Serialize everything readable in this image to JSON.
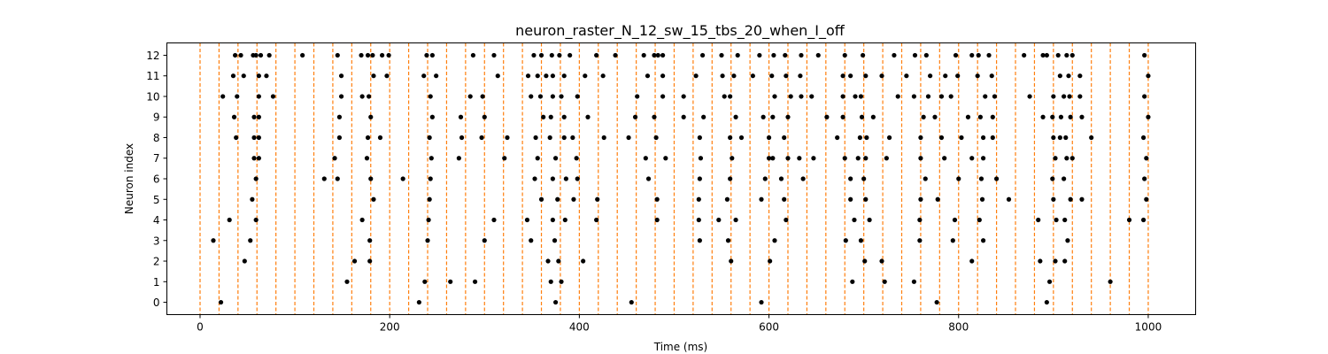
{
  "chart_data": {
    "type": "scatter",
    "title": "neuron_raster_N_12_sw_15_tbs_20_when_I_off",
    "xlabel": "Time (ms)",
    "ylabel": "Neuron index",
    "xlim": [
      -35,
      1050
    ],
    "ylim": [
      -0.6,
      12.6
    ],
    "xticks": [
      0,
      200,
      400,
      600,
      800,
      1000
    ],
    "yticks": [
      0,
      1,
      2,
      3,
      4,
      5,
      6,
      7,
      8,
      9,
      10,
      11,
      12
    ],
    "grid": false,
    "legend": "none",
    "marker_color": "#000000",
    "vline_color": "#ff7f0e",
    "vlines_x": [
      0,
      20,
      40,
      60,
      80,
      100,
      120,
      140,
      160,
      180,
      200,
      220,
      240,
      260,
      280,
      300,
      320,
      340,
      360,
      380,
      400,
      420,
      440,
      460,
      480,
      500,
      520,
      540,
      560,
      580,
      600,
      620,
      640,
      660,
      680,
      700,
      720,
      740,
      760,
      780,
      800,
      820,
      840,
      860,
      880,
      900,
      920,
      940,
      960,
      980,
      1000
    ],
    "spikes": [
      [
        22,
        0
      ],
      [
        231,
        0
      ],
      [
        375,
        0
      ],
      [
        455,
        0
      ],
      [
        592,
        0
      ],
      [
        777,
        0
      ],
      [
        893,
        0
      ],
      [
        155,
        1
      ],
      [
        237,
        1
      ],
      [
        264,
        1
      ],
      [
        290,
        1
      ],
      [
        370,
        1
      ],
      [
        381,
        1
      ],
      [
        688,
        1
      ],
      [
        722,
        1
      ],
      [
        753,
        1
      ],
      [
        896,
        1
      ],
      [
        960,
        1
      ],
      [
        47,
        2
      ],
      [
        163,
        2
      ],
      [
        179,
        2
      ],
      [
        367,
        2
      ],
      [
        378,
        2
      ],
      [
        404,
        2
      ],
      [
        560,
        2
      ],
      [
        601,
        2
      ],
      [
        701,
        2
      ],
      [
        719,
        2
      ],
      [
        814,
        2
      ],
      [
        886,
        2
      ],
      [
        902,
        2
      ],
      [
        912,
        2
      ],
      [
        14,
        3
      ],
      [
        53,
        3
      ],
      [
        179,
        3
      ],
      [
        240,
        3
      ],
      [
        300,
        3
      ],
      [
        349,
        3
      ],
      [
        374,
        3
      ],
      [
        527,
        3
      ],
      [
        557,
        3
      ],
      [
        606,
        3
      ],
      [
        681,
        3
      ],
      [
        697,
        3
      ],
      [
        759,
        3
      ],
      [
        794,
        3
      ],
      [
        826,
        3
      ],
      [
        915,
        3
      ],
      [
        31,
        4
      ],
      [
        59,
        4
      ],
      [
        171,
        4
      ],
      [
        241,
        4
      ],
      [
        310,
        4
      ],
      [
        345,
        4
      ],
      [
        372,
        4
      ],
      [
        385,
        4
      ],
      [
        418,
        4
      ],
      [
        482,
        4
      ],
      [
        526,
        4
      ],
      [
        547,
        4
      ],
      [
        565,
        4
      ],
      [
        618,
        4
      ],
      [
        690,
        4
      ],
      [
        706,
        4
      ],
      [
        759,
        4
      ],
      [
        796,
        4
      ],
      [
        822,
        4
      ],
      [
        884,
        4
      ],
      [
        903,
        4
      ],
      [
        912,
        4
      ],
      [
        980,
        4
      ],
      [
        995,
        4
      ],
      [
        55,
        5
      ],
      [
        183,
        5
      ],
      [
        242,
        5
      ],
      [
        360,
        5
      ],
      [
        377,
        5
      ],
      [
        394,
        5
      ],
      [
        419,
        5
      ],
      [
        482,
        5
      ],
      [
        526,
        5
      ],
      [
        556,
        5
      ],
      [
        592,
        5
      ],
      [
        616,
        5
      ],
      [
        686,
        5
      ],
      [
        702,
        5
      ],
      [
        760,
        5
      ],
      [
        778,
        5
      ],
      [
        825,
        5
      ],
      [
        853,
        5
      ],
      [
        900,
        5
      ],
      [
        918,
        5
      ],
      [
        930,
        5
      ],
      [
        998,
        5
      ],
      [
        59,
        6
      ],
      [
        131,
        6
      ],
      [
        145,
        6
      ],
      [
        180,
        6
      ],
      [
        214,
        6
      ],
      [
        243,
        6
      ],
      [
        353,
        6
      ],
      [
        372,
        6
      ],
      [
        386,
        6
      ],
      [
        398,
        6
      ],
      [
        473,
        6
      ],
      [
        527,
        6
      ],
      [
        559,
        6
      ],
      [
        596,
        6
      ],
      [
        613,
        6
      ],
      [
        636,
        6
      ],
      [
        686,
        6
      ],
      [
        700,
        6
      ],
      [
        765,
        6
      ],
      [
        800,
        6
      ],
      [
        824,
        6
      ],
      [
        840,
        6
      ],
      [
        899,
        6
      ],
      [
        911,
        6
      ],
      [
        996,
        6
      ],
      [
        57,
        7
      ],
      [
        62,
        7
      ],
      [
        142,
        7
      ],
      [
        176,
        7
      ],
      [
        244,
        7
      ],
      [
        273,
        7
      ],
      [
        321,
        7
      ],
      [
        356,
        7
      ],
      [
        375,
        7
      ],
      [
        397,
        7
      ],
      [
        470,
        7
      ],
      [
        491,
        7
      ],
      [
        528,
        7
      ],
      [
        561,
        7
      ],
      [
        600,
        7
      ],
      [
        604,
        7
      ],
      [
        620,
        7
      ],
      [
        632,
        7
      ],
      [
        647,
        7
      ],
      [
        680,
        7
      ],
      [
        694,
        7
      ],
      [
        702,
        7
      ],
      [
        724,
        7
      ],
      [
        760,
        7
      ],
      [
        785,
        7
      ],
      [
        814,
        7
      ],
      [
        826,
        7
      ],
      [
        902,
        7
      ],
      [
        914,
        7
      ],
      [
        920,
        7
      ],
      [
        998,
        7
      ],
      [
        38,
        8
      ],
      [
        57,
        8
      ],
      [
        62,
        8
      ],
      [
        147,
        8
      ],
      [
        177,
        8
      ],
      [
        190,
        8
      ],
      [
        242,
        8
      ],
      [
        276,
        8
      ],
      [
        297,
        8
      ],
      [
        324,
        8
      ],
      [
        354,
        8
      ],
      [
        369,
        8
      ],
      [
        384,
        8
      ],
      [
        393,
        8
      ],
      [
        426,
        8
      ],
      [
        452,
        8
      ],
      [
        481,
        8
      ],
      [
        527,
        8
      ],
      [
        559,
        8
      ],
      [
        571,
        8
      ],
      [
        600,
        8
      ],
      [
        616,
        8
      ],
      [
        672,
        8
      ],
      [
        696,
        8
      ],
      [
        703,
        8
      ],
      [
        727,
        8
      ],
      [
        760,
        8
      ],
      [
        782,
        8
      ],
      [
        803,
        8
      ],
      [
        826,
        8
      ],
      [
        836,
        8
      ],
      [
        900,
        8
      ],
      [
        907,
        8
      ],
      [
        913,
        8
      ],
      [
        940,
        8
      ],
      [
        995,
        8
      ],
      [
        36,
        9
      ],
      [
        57,
        9
      ],
      [
        62,
        9
      ],
      [
        147,
        9
      ],
      [
        180,
        9
      ],
      [
        245,
        9
      ],
      [
        275,
        9
      ],
      [
        300,
        9
      ],
      [
        362,
        9
      ],
      [
        370,
        9
      ],
      [
        384,
        9
      ],
      [
        409,
        9
      ],
      [
        459,
        9
      ],
      [
        479,
        9
      ],
      [
        510,
        9
      ],
      [
        531,
        9
      ],
      [
        565,
        9
      ],
      [
        594,
        9
      ],
      [
        604,
        9
      ],
      [
        620,
        9
      ],
      [
        661,
        9
      ],
      [
        678,
        9
      ],
      [
        698,
        9
      ],
      [
        710,
        9
      ],
      [
        763,
        9
      ],
      [
        775,
        9
      ],
      [
        810,
        9
      ],
      [
        823,
        9
      ],
      [
        836,
        9
      ],
      [
        889,
        9
      ],
      [
        899,
        9
      ],
      [
        908,
        9
      ],
      [
        918,
        9
      ],
      [
        930,
        9
      ],
      [
        1000,
        9
      ],
      [
        24,
        10
      ],
      [
        39,
        10
      ],
      [
        62,
        10
      ],
      [
        77,
        10
      ],
      [
        149,
        10
      ],
      [
        171,
        10
      ],
      [
        178,
        10
      ],
      [
        243,
        10
      ],
      [
        285,
        10
      ],
      [
        298,
        10
      ],
      [
        349,
        10
      ],
      [
        359,
        10
      ],
      [
        372,
        10
      ],
      [
        381,
        10
      ],
      [
        398,
        10
      ],
      [
        461,
        10
      ],
      [
        488,
        10
      ],
      [
        510,
        10
      ],
      [
        553,
        10
      ],
      [
        559,
        10
      ],
      [
        606,
        10
      ],
      [
        623,
        10
      ],
      [
        634,
        10
      ],
      [
        645,
        10
      ],
      [
        678,
        10
      ],
      [
        691,
        10
      ],
      [
        697,
        10
      ],
      [
        736,
        10
      ],
      [
        753,
        10
      ],
      [
        768,
        10
      ],
      [
        782,
        10
      ],
      [
        792,
        10
      ],
      [
        828,
        10
      ],
      [
        838,
        10
      ],
      [
        875,
        10
      ],
      [
        900,
        10
      ],
      [
        911,
        10
      ],
      [
        917,
        10
      ],
      [
        928,
        10
      ],
      [
        996,
        10
      ],
      [
        35,
        11
      ],
      [
        46,
        11
      ],
      [
        62,
        11
      ],
      [
        70,
        11
      ],
      [
        149,
        11
      ],
      [
        183,
        11
      ],
      [
        197,
        11
      ],
      [
        236,
        11
      ],
      [
        249,
        11
      ],
      [
        314,
        11
      ],
      [
        346,
        11
      ],
      [
        356,
        11
      ],
      [
        365,
        11
      ],
      [
        372,
        11
      ],
      [
        384,
        11
      ],
      [
        406,
        11
      ],
      [
        425,
        11
      ],
      [
        472,
        11
      ],
      [
        488,
        11
      ],
      [
        523,
        11
      ],
      [
        551,
        11
      ],
      [
        563,
        11
      ],
      [
        583,
        11
      ],
      [
        603,
        11
      ],
      [
        618,
        11
      ],
      [
        633,
        11
      ],
      [
        678,
        11
      ],
      [
        686,
        11
      ],
      [
        702,
        11
      ],
      [
        719,
        11
      ],
      [
        745,
        11
      ],
      [
        770,
        11
      ],
      [
        786,
        11
      ],
      [
        799,
        11
      ],
      [
        820,
        11
      ],
      [
        835,
        11
      ],
      [
        907,
        11
      ],
      [
        916,
        11
      ],
      [
        928,
        11
      ],
      [
        1000,
        11
      ],
      [
        37,
        12
      ],
      [
        43,
        12
      ],
      [
        56,
        12
      ],
      [
        59,
        12
      ],
      [
        64,
        12
      ],
      [
        73,
        12
      ],
      [
        108,
        12
      ],
      [
        145,
        12
      ],
      [
        170,
        12
      ],
      [
        177,
        12
      ],
      [
        182,
        12
      ],
      [
        192,
        12
      ],
      [
        199,
        12
      ],
      [
        239,
        12
      ],
      [
        245,
        12
      ],
      [
        288,
        12
      ],
      [
        310,
        12
      ],
      [
        352,
        12
      ],
      [
        360,
        12
      ],
      [
        371,
        12
      ],
      [
        379,
        12
      ],
      [
        390,
        12
      ],
      [
        418,
        12
      ],
      [
        438,
        12
      ],
      [
        468,
        12
      ],
      [
        479,
        12
      ],
      [
        483,
        12
      ],
      [
        488,
        12
      ],
      [
        530,
        12
      ],
      [
        550,
        12
      ],
      [
        567,
        12
      ],
      [
        590,
        12
      ],
      [
        605,
        12
      ],
      [
        617,
        12
      ],
      [
        634,
        12
      ],
      [
        652,
        12
      ],
      [
        680,
        12
      ],
      [
        699,
        12
      ],
      [
        732,
        12
      ],
      [
        754,
        12
      ],
      [
        766,
        12
      ],
      [
        797,
        12
      ],
      [
        814,
        12
      ],
      [
        821,
        12
      ],
      [
        832,
        12
      ],
      [
        869,
        12
      ],
      [
        889,
        12
      ],
      [
        893,
        12
      ],
      [
        905,
        12
      ],
      [
        914,
        12
      ],
      [
        920,
        12
      ],
      [
        996,
        12
      ]
    ]
  }
}
